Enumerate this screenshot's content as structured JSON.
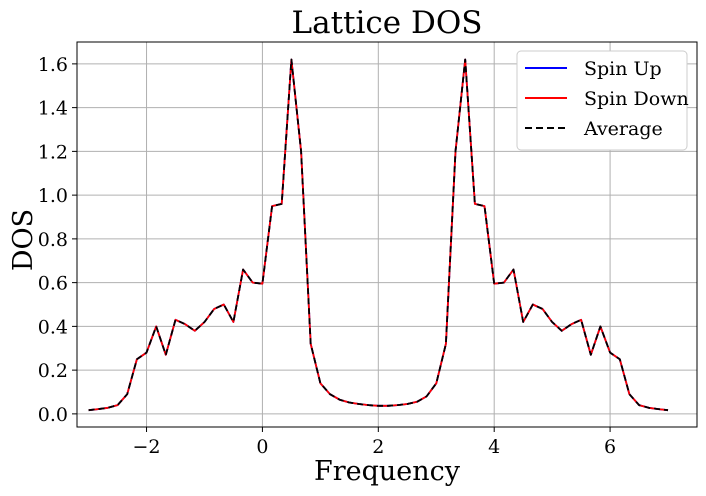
{
  "chart_data": {
    "type": "line",
    "title": "Lattice DOS",
    "xlabel": "Frequency",
    "ylabel": "DOS",
    "xlim": [
      -3.2,
      7.5
    ],
    "ylim": [
      -0.06,
      1.7
    ],
    "xticks": [
      -2,
      0,
      2,
      4,
      6
    ],
    "xtick_labels": [
      "−2",
      "0",
      "2",
      "4",
      "6"
    ],
    "yticks": [
      0.0,
      0.2,
      0.4,
      0.6,
      0.8,
      1.0,
      1.2,
      1.4,
      1.6
    ],
    "ytick_labels": [
      "0.0",
      "0.2",
      "0.4",
      "0.6",
      "0.8",
      "1.0",
      "1.2",
      "1.4",
      "1.6"
    ],
    "grid": true,
    "legend_position": "upper right",
    "x": [
      -3.0,
      -2.833,
      -2.667,
      -2.5,
      -2.333,
      -2.167,
      -2.0,
      -1.833,
      -1.667,
      -1.5,
      -1.333,
      -1.167,
      -1.0,
      -0.833,
      -0.667,
      -0.5,
      -0.333,
      -0.167,
      0.0,
      0.167,
      0.333,
      0.5,
      0.667,
      0.833,
      1.0,
      1.167,
      1.333,
      1.5,
      1.667,
      1.833,
      2.0,
      2.167,
      2.333,
      2.5,
      2.667,
      2.833,
      3.0,
      3.167,
      3.333,
      3.5,
      3.667,
      3.833,
      4.0,
      4.167,
      4.333,
      4.5,
      4.667,
      4.833,
      5.0,
      5.167,
      5.333,
      5.5,
      5.667,
      5.833,
      6.0,
      6.167,
      6.333,
      6.5,
      6.667,
      6.833,
      7.0
    ],
    "series": [
      {
        "name": "Spin Up",
        "color": "#0000ff",
        "style": "solid",
        "values": [
          0.017,
          0.022,
          0.028,
          0.04,
          0.09,
          0.25,
          0.28,
          0.4,
          0.27,
          0.43,
          0.41,
          0.38,
          0.42,
          0.48,
          0.5,
          0.42,
          0.66,
          0.6,
          0.595,
          0.95,
          0.96,
          1.62,
          1.2,
          0.32,
          0.14,
          0.09,
          0.065,
          0.052,
          0.045,
          0.04,
          0.037,
          0.037,
          0.04,
          0.045,
          0.055,
          0.08,
          0.14,
          0.32,
          1.2,
          1.62,
          0.96,
          0.95,
          0.595,
          0.6,
          0.66,
          0.42,
          0.5,
          0.48,
          0.42,
          0.38,
          0.41,
          0.43,
          0.27,
          0.4,
          0.28,
          0.25,
          0.09,
          0.04,
          0.028,
          0.022,
          0.017
        ]
      },
      {
        "name": "Spin Down",
        "color": "#ff0000",
        "style": "solid",
        "values": [
          0.017,
          0.022,
          0.028,
          0.04,
          0.09,
          0.25,
          0.28,
          0.4,
          0.27,
          0.43,
          0.41,
          0.38,
          0.42,
          0.48,
          0.5,
          0.42,
          0.66,
          0.6,
          0.595,
          0.95,
          0.96,
          1.62,
          1.2,
          0.32,
          0.14,
          0.09,
          0.065,
          0.052,
          0.045,
          0.04,
          0.037,
          0.037,
          0.04,
          0.045,
          0.055,
          0.08,
          0.14,
          0.32,
          1.2,
          1.62,
          0.96,
          0.95,
          0.595,
          0.6,
          0.66,
          0.42,
          0.5,
          0.48,
          0.42,
          0.38,
          0.41,
          0.43,
          0.27,
          0.4,
          0.28,
          0.25,
          0.09,
          0.04,
          0.028,
          0.022,
          0.017
        ]
      },
      {
        "name": "Average",
        "color": "#000000",
        "style": "dashed",
        "values": [
          0.017,
          0.022,
          0.028,
          0.04,
          0.09,
          0.25,
          0.28,
          0.4,
          0.27,
          0.43,
          0.41,
          0.38,
          0.42,
          0.48,
          0.5,
          0.42,
          0.66,
          0.6,
          0.595,
          0.95,
          0.96,
          1.62,
          1.2,
          0.32,
          0.14,
          0.09,
          0.065,
          0.052,
          0.045,
          0.04,
          0.037,
          0.037,
          0.04,
          0.045,
          0.055,
          0.08,
          0.14,
          0.32,
          1.2,
          1.62,
          0.96,
          0.95,
          0.595,
          0.6,
          0.66,
          0.42,
          0.5,
          0.48,
          0.42,
          0.38,
          0.41,
          0.43,
          0.27,
          0.4,
          0.28,
          0.25,
          0.09,
          0.04,
          0.028,
          0.022,
          0.017
        ]
      }
    ]
  }
}
